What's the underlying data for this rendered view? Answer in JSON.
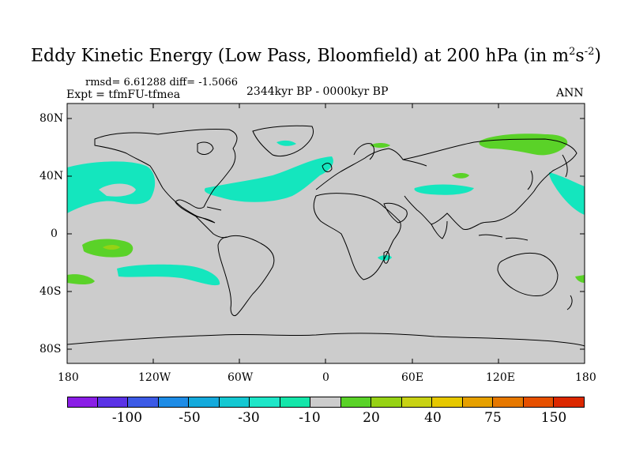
{
  "title": {
    "main": "Eddy Kinetic Energy (Low Pass, Bloomfield) at 200 hPa (in m",
    "sup1": "2",
    "mid": "s",
    "sup2": "-2",
    "end": ")"
  },
  "stats": "rmsd= 6.61288 diff= -1.5066",
  "left_label": "Expt = tfmFU-tfmea",
  "center_label": "2344kyr BP - 0000kyr BP",
  "right_label": "ANN",
  "lat_ticks": [
    "80N",
    "40N",
    "0",
    "40S",
    "80S"
  ],
  "lon_ticks": [
    "180",
    "120W",
    "60W",
    "0",
    "60E",
    "120E",
    "180"
  ],
  "colorbar": {
    "colors": [
      "#8a1ee6",
      "#5a32e6",
      "#3c5ae6",
      "#1e8ce6",
      "#14aadc",
      "#14c8d2",
      "#1ee6c8",
      "#14e6aa",
      "#cccccc",
      "#5ad228",
      "#96d214",
      "#c8d214",
      "#e6c800",
      "#e6a000",
      "#e67800",
      "#e65000",
      "#dc2800"
    ],
    "labels": [
      "-100",
      "-50",
      "-30",
      "-10",
      "20",
      "40",
      "75",
      "150"
    ]
  },
  "colors": {
    "land_ocean": "#cccccc",
    "cyan_anomaly": "#14e6be",
    "green_anomaly": "#5ad228",
    "yellow_green": "#96d214",
    "coast": "#000000"
  }
}
